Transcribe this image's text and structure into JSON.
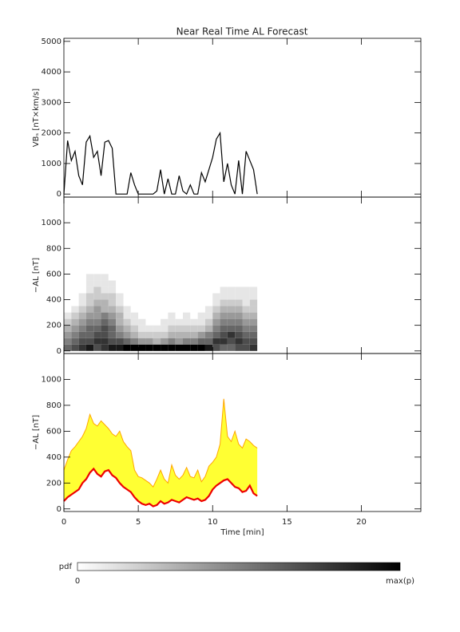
{
  "title": "Near Real Time AL Forecast",
  "chart_data": [
    {
      "type": "line",
      "ylabel": "VBₛ [nT×km/s]",
      "xlim": [
        0,
        24
      ],
      "xticks": [
        0,
        5,
        10,
        15,
        20
      ],
      "ylim": [
        -100,
        5100
      ],
      "yticks": [
        0,
        1000,
        2000,
        3000,
        4000,
        5000
      ],
      "x": [
        0,
        0.25,
        0.5,
        0.75,
        1,
        1.25,
        1.5,
        1.75,
        2,
        2.25,
        2.5,
        2.75,
        3,
        3.25,
        3.5,
        3.75,
        4,
        4.25,
        4.5,
        4.75,
        5,
        5.25,
        5.5,
        5.75,
        6,
        6.25,
        6.5,
        6.75,
        7,
        7.25,
        7.5,
        7.75,
        8,
        8.25,
        8.5,
        8.75,
        9,
        9.25,
        9.5,
        9.75,
        10,
        10.25,
        10.5,
        10.75,
        11,
        11.25,
        11.5,
        11.75,
        12,
        12.25,
        12.5,
        12.75,
        13
      ],
      "series": [
        {
          "color": "#000000",
          "values": [
            0,
            1750,
            1100,
            1400,
            600,
            300,
            1700,
            1900,
            1200,
            1400,
            600,
            1700,
            1750,
            1500,
            0,
            0,
            0,
            0,
            700,
            300,
            0,
            0,
            0,
            0,
            0,
            100,
            800,
            0,
            500,
            0,
            0,
            600,
            100,
            0,
            300,
            0,
            0,
            700,
            400,
            800,
            1200,
            1800,
            2000,
            400,
            1000,
            300,
            0,
            1100,
            0,
            1400,
            1100,
            800,
            0
          ]
        }
      ]
    },
    {
      "type": "heatmap",
      "ylabel": "−AL [nT]",
      "xlim": [
        0,
        24
      ],
      "xticks": [
        0,
        5,
        10,
        15,
        20
      ],
      "ylim": [
        -20,
        1200
      ],
      "yticks": [
        0,
        200,
        400,
        600,
        800,
        1000
      ],
      "x_bins": [
        0,
        0.5,
        1,
        1.5,
        2,
        2.5,
        3,
        3.5,
        4,
        4.5,
        5,
        5.5,
        6,
        6.5,
        7,
        7.5,
        8,
        8.5,
        9,
        9.5,
        10,
        10.5,
        11,
        11.5,
        12,
        12.5,
        13
      ],
      "y_bins": [
        0,
        50,
        100,
        150,
        200,
        250,
        300,
        350,
        400,
        450,
        500,
        550,
        600
      ],
      "z": [
        [
          0.6,
          0.5,
          0.4,
          0.3,
          0.2,
          0.1,
          0,
          0,
          0,
          0,
          0,
          0
        ],
        [
          0.7,
          0.6,
          0.5,
          0.4,
          0.3,
          0.2,
          0.1,
          0,
          0,
          0,
          0,
          0
        ],
        [
          0.8,
          0.7,
          0.6,
          0.5,
          0.4,
          0.3,
          0.2,
          0.1,
          0.1,
          0,
          0,
          0
        ],
        [
          0.9,
          0.7,
          0.6,
          0.6,
          0.5,
          0.4,
          0.3,
          0.2,
          0.2,
          0.1,
          0.1,
          0.1
        ],
        [
          0.7,
          0.8,
          0.7,
          0.6,
          0.5,
          0.4,
          0.4,
          0.3,
          0.2,
          0.2,
          0.1,
          0.1
        ],
        [
          0.8,
          0.8,
          0.7,
          0.7,
          0.6,
          0.5,
          0.3,
          0.3,
          0.2,
          0.1,
          0.1,
          0.1
        ],
        [
          0.9,
          0.7,
          0.6,
          0.6,
          0.5,
          0.4,
          0.3,
          0.2,
          0.2,
          0.1,
          0.1,
          0
        ],
        [
          0.9,
          0.7,
          0.5,
          0.4,
          0.3,
          0.3,
          0.2,
          0.1,
          0.1,
          0,
          0,
          0
        ],
        [
          1,
          0.6,
          0.4,
          0.3,
          0.2,
          0.1,
          0.1,
          0,
          0,
          0,
          0,
          0
        ],
        [
          1,
          0.5,
          0.3,
          0.2,
          0.1,
          0.1,
          0,
          0,
          0,
          0,
          0,
          0
        ],
        [
          1,
          0.4,
          0.2,
          0.1,
          0.1,
          0,
          0,
          0,
          0,
          0,
          0,
          0
        ],
        [
          1,
          0.4,
          0.2,
          0.1,
          0,
          0,
          0,
          0,
          0,
          0,
          0,
          0
        ],
        [
          1,
          0.3,
          0.2,
          0.1,
          0,
          0,
          0,
          0,
          0,
          0,
          0,
          0
        ],
        [
          1,
          0.4,
          0.2,
          0.1,
          0.1,
          0,
          0,
          0,
          0,
          0,
          0,
          0
        ],
        [
          1,
          0.5,
          0.3,
          0.2,
          0.1,
          0.1,
          0,
          0,
          0,
          0,
          0,
          0
        ],
        [
          1,
          0.4,
          0.3,
          0.2,
          0.1,
          0,
          0,
          0,
          0,
          0,
          0,
          0
        ],
        [
          1,
          0.5,
          0.3,
          0.2,
          0.1,
          0.1,
          0,
          0,
          0,
          0,
          0,
          0
        ],
        [
          1,
          0.5,
          0.3,
          0.2,
          0.1,
          0,
          0,
          0,
          0,
          0,
          0,
          0
        ],
        [
          1,
          0.6,
          0.4,
          0.2,
          0.1,
          0.1,
          0,
          0,
          0,
          0,
          0,
          0
        ],
        [
          0.9,
          0.6,
          0.5,
          0.3,
          0.2,
          0.1,
          0.1,
          0,
          0,
          0,
          0,
          0
        ],
        [
          0.7,
          0.8,
          0.6,
          0.5,
          0.4,
          0.3,
          0.2,
          0.1,
          0.1,
          0,
          0,
          0
        ],
        [
          0.6,
          0.8,
          0.7,
          0.6,
          0.5,
          0.4,
          0.3,
          0.2,
          0.1,
          0.1,
          0,
          0
        ],
        [
          0.6,
          0.7,
          0.8,
          0.6,
          0.5,
          0.4,
          0.3,
          0.2,
          0.1,
          0.1,
          0,
          0
        ],
        [
          0.7,
          0.8,
          0.7,
          0.6,
          0.5,
          0.4,
          0.3,
          0.2,
          0.1,
          0.1,
          0,
          0
        ],
        [
          0.7,
          0.7,
          0.6,
          0.5,
          0.4,
          0.3,
          0.2,
          0.1,
          0.1,
          0.1,
          0,
          0
        ],
        [
          0.8,
          0.7,
          0.6,
          0.5,
          0.4,
          0.3,
          0.2,
          0.2,
          0.1,
          0.1,
          0,
          0
        ]
      ],
      "colorbar": {
        "label": "pdf",
        "min_label": "0",
        "max_label": "max(p)"
      }
    },
    {
      "type": "band",
      "ylabel": "−AL [nT]",
      "xlabel": "Time [min]",
      "xtick_labels": true,
      "xlim": [
        0,
        24
      ],
      "xticks": [
        0,
        5,
        10,
        15,
        20
      ],
      "ylim": [
        -20,
        1200
      ],
      "yticks": [
        0,
        200,
        400,
        600,
        800,
        1000
      ],
      "fill": "#ffff33",
      "x": [
        0,
        0.25,
        0.5,
        0.75,
        1,
        1.25,
        1.5,
        1.75,
        2,
        2.25,
        2.5,
        2.75,
        3,
        3.25,
        3.5,
        3.75,
        4,
        4.25,
        4.5,
        4.75,
        5,
        5.25,
        5.5,
        5.75,
        6,
        6.25,
        6.5,
        6.75,
        7,
        7.25,
        7.5,
        7.75,
        8,
        8.25,
        8.5,
        8.75,
        9,
        9.25,
        9.5,
        9.75,
        10,
        10.25,
        10.5,
        10.75,
        11,
        11.25,
        11.5,
        11.75,
        12,
        12.25,
        12.5,
        12.75,
        13
      ],
      "series": [
        {
          "color": "#ffa500",
          "values": [
            300,
            380,
            450,
            480,
            520,
            560,
            620,
            730,
            660,
            640,
            680,
            650,
            620,
            580,
            560,
            600,
            520,
            480,
            450,
            300,
            250,
            240,
            220,
            200,
            170,
            230,
            300,
            230,
            200,
            340,
            260,
            230,
            260,
            320,
            250,
            240,
            300,
            210,
            250,
            330,
            360,
            400,
            500,
            850,
            560,
            520,
            600,
            500,
            470,
            540,
            520,
            490,
            470
          ]
        },
        {
          "color": "#ee0000",
          "values": [
            60,
            90,
            110,
            130,
            150,
            200,
            230,
            280,
            310,
            270,
            250,
            290,
            300,
            260,
            240,
            200,
            170,
            150,
            130,
            90,
            60,
            40,
            30,
            40,
            20,
            30,
            60,
            40,
            50,
            70,
            60,
            50,
            70,
            90,
            80,
            70,
            80,
            60,
            70,
            100,
            150,
            180,
            200,
            220,
            230,
            200,
            170,
            160,
            130,
            140,
            180,
            120,
            100
          ]
        }
      ]
    }
  ]
}
